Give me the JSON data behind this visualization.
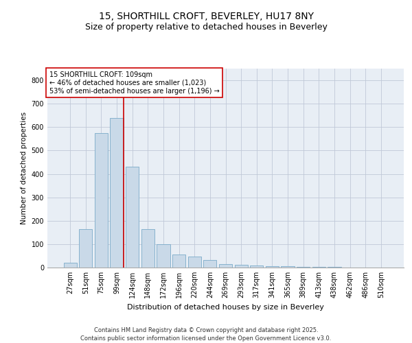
{
  "title_line1": "15, SHORTHILL CROFT, BEVERLEY, HU17 8NY",
  "title_line2": "Size of property relative to detached houses in Beverley",
  "xlabel": "Distribution of detached houses by size in Beverley",
  "ylabel": "Number of detached properties",
  "categories": [
    "27sqm",
    "51sqm",
    "75sqm",
    "99sqm",
    "124sqm",
    "148sqm",
    "172sqm",
    "196sqm",
    "220sqm",
    "244sqm",
    "269sqm",
    "293sqm",
    "317sqm",
    "341sqm",
    "365sqm",
    "389sqm",
    "413sqm",
    "438sqm",
    "462sqm",
    "486sqm",
    "510sqm"
  ],
  "values": [
    20,
    165,
    575,
    640,
    430,
    165,
    100,
    55,
    48,
    33,
    15,
    12,
    9,
    7,
    5,
    4,
    3,
    2,
    1,
    1,
    1
  ],
  "bar_color": "#c9d9e8",
  "bar_edge_color": "#7aaac8",
  "vline_x_index": 3,
  "vline_color": "#cc0000",
  "annotation_box_text": "15 SHORTHILL CROFT: 109sqm\n← 46% of detached houses are smaller (1,023)\n53% of semi-detached houses are larger (1,196) →",
  "annotation_box_color": "#cc0000",
  "annotation_box_bg": "#ffffff",
  "ylim": [
    0,
    850
  ],
  "yticks": [
    0,
    100,
    200,
    300,
    400,
    500,
    600,
    700,
    800
  ],
  "grid_color": "#c0c8d8",
  "background_color": "#e8eef5",
  "footer_line1": "Contains HM Land Registry data © Crown copyright and database right 2025.",
  "footer_line2": "Contains public sector information licensed under the Open Government Licence v3.0.",
  "font_size_title1": 10,
  "font_size_title2": 9,
  "font_size_ticks": 7,
  "font_size_ylabel": 7.5,
  "font_size_xlabel": 8,
  "font_size_annot": 7,
  "font_size_footer": 6
}
